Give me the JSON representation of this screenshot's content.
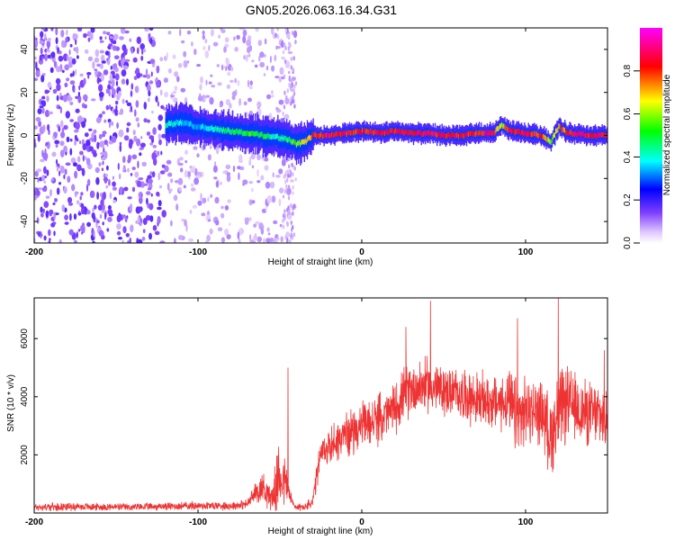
{
  "title": "GN05.2026.063.16.34.G31",
  "chart_data": [
    {
      "type": "heatmap",
      "name": "spectrogram",
      "xlabel": "Height of straight line (km)",
      "ylabel": "Frequency (Hz)",
      "xlim": [
        -200,
        150
      ],
      "ylim": [
        -50,
        50
      ],
      "xticks": [
        -200,
        -100,
        0,
        100
      ],
      "xtick_labels": [
        "-200",
        "-100",
        "0",
        "100"
      ],
      "yticks": [
        -40,
        -20,
        0,
        20,
        40
      ],
      "ytick_labels": [
        "-40",
        "-20",
        "0",
        "20",
        "40"
      ],
      "colorbar": {
        "label": "Normalized spectral amplitude",
        "range": [
          0,
          1
        ],
        "ticks": [
          0.0,
          0.2,
          0.4,
          0.6,
          0.8
        ],
        "tick_labels": [
          "0.0",
          "0.2",
          "0.4",
          "0.6",
          "0.8"
        ]
      },
      "tone_track": {
        "x": [
          -120,
          -110,
          -100,
          -90,
          -80,
          -70,
          -60,
          -50,
          -45,
          -40,
          -35,
          -30,
          -20,
          -10,
          0,
          10,
          20,
          30,
          40,
          50,
          60,
          70,
          80,
          85,
          90,
          100,
          110,
          115,
          120,
          125,
          130,
          140,
          150
        ],
        "freq": [
          5,
          6,
          4,
          3,
          2,
          1,
          0,
          -1,
          -2,
          -4,
          -3,
          0,
          0,
          1,
          2,
          1,
          2,
          1,
          1,
          0,
          0,
          1,
          1,
          5,
          2,
          1,
          0,
          -3,
          4,
          1,
          1,
          0,
          0
        ],
        "amplitude": [
          0.45,
          0.4,
          0.35,
          0.45,
          0.5,
          0.55,
          0.5,
          0.45,
          0.5,
          0.6,
          0.7,
          0.85,
          0.9,
          0.9,
          0.85,
          0.9,
          0.9,
          0.9,
          0.9,
          0.9,
          0.9,
          0.85,
          0.9,
          0.6,
          0.9,
          0.9,
          0.85,
          0.6,
          0.8,
          0.85,
          0.9,
          0.9,
          0.9
        ]
      },
      "noise_region": {
        "x_from": -200,
        "x_to": -40,
        "dense_to": -120,
        "amplitude": [
          0.1,
          0.3
        ]
      }
    },
    {
      "type": "line",
      "name": "snr",
      "xlabel": "Height of straight line (km)",
      "ylabel": "SNR (10 * v/v)",
      "xlim": [
        -200,
        150
      ],
      "ylim": [
        0,
        7400
      ],
      "xticks": [
        -200,
        -100,
        0,
        100
      ],
      "xtick_labels": [
        "-200",
        "-100",
        "0",
        "100"
      ],
      "yticks": [
        2000,
        4000,
        6000
      ],
      "ytick_labels": [
        "2000",
        "4000",
        "6000"
      ],
      "color": "#ee3333",
      "envelope": {
        "x": [
          -200,
          -180,
          -160,
          -140,
          -120,
          -100,
          -80,
          -70,
          -65,
          -60,
          -55,
          -50,
          -46,
          -44,
          -42,
          -40,
          -35,
          -30,
          -27,
          -25,
          -20,
          -10,
          0,
          10,
          20,
          25,
          30,
          40,
          50,
          60,
          70,
          80,
          90,
          95,
          100,
          110,
          115,
          120,
          125,
          130,
          140,
          150
        ],
        "mean": [
          200,
          220,
          210,
          200,
          230,
          250,
          250,
          300,
          700,
          900,
          500,
          1300,
          1000,
          600,
          300,
          200,
          200,
          350,
          1400,
          2000,
          2300,
          2700,
          3000,
          3200,
          3600,
          4000,
          4300,
          4400,
          4200,
          4100,
          3900,
          3800,
          3800,
          3200,
          3500,
          3500,
          2600,
          3400,
          3800,
          3600,
          3400,
          3300
        ],
        "spread": [
          150,
          160,
          150,
          150,
          160,
          180,
          180,
          200,
          400,
          700,
          500,
          1500,
          900,
          400,
          200,
          150,
          150,
          300,
          600,
          700,
          800,
          900,
          900,
          1000,
          1000,
          1100,
          1100,
          1100,
          1000,
          1000,
          1100,
          1100,
          1200,
          1800,
          1300,
          1300,
          1600,
          1800,
          1500,
          1400,
          1300,
          1300
        ]
      },
      "peaks": [
        {
          "x": -45,
          "y": 5000
        },
        {
          "x": 27,
          "y": 6400
        },
        {
          "x": 42,
          "y": 7300
        },
        {
          "x": 95,
          "y": 6700
        },
        {
          "x": 120,
          "y": 7400
        },
        {
          "x": 148,
          "y": 5600
        }
      ]
    }
  ]
}
